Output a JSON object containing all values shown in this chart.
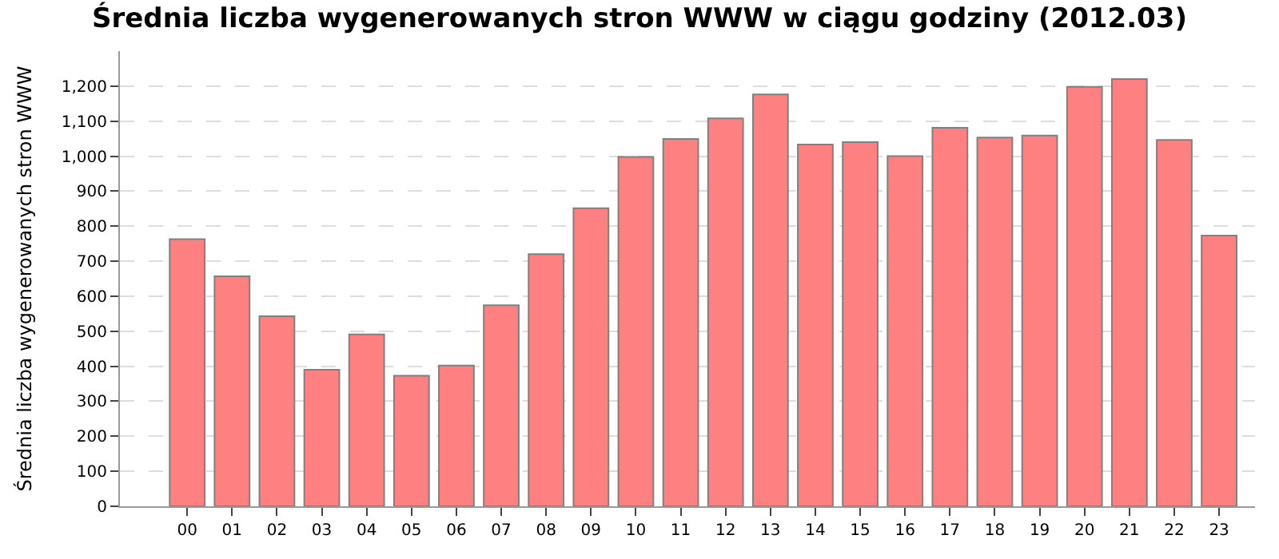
{
  "chart_data": {
    "type": "bar",
    "title": "Średnia liczba wygenerowanych stron WWW w ciągu godziny (2012.03)",
    "ylabel": "Średnia liczba wygenerowanych stron WWW",
    "categories": [
      "00",
      "01",
      "02",
      "03",
      "04",
      "05",
      "06",
      "07",
      "08",
      "09",
      "10",
      "11",
      "12",
      "13",
      "14",
      "15",
      "16",
      "17",
      "18",
      "19",
      "20",
      "21",
      "22",
      "23"
    ],
    "values": [
      763,
      657,
      543,
      390,
      491,
      373,
      402,
      574,
      720,
      851,
      998,
      1049,
      1108,
      1176,
      1033,
      1040,
      1000,
      1081,
      1053,
      1059,
      1198,
      1220,
      1046,
      773
    ],
    "color": "#ff8080",
    "ylim": [
      0,
      1300
    ],
    "yticks": [
      0,
      100,
      200,
      300,
      400,
      500,
      600,
      700,
      800,
      900,
      {
        "value": 1000,
        "label": "1,000"
      },
      {
        "value": 1100,
        "label": "1,100"
      },
      {
        "value": 1200,
        "label": "1,200"
      }
    ],
    "grid": "y"
  }
}
